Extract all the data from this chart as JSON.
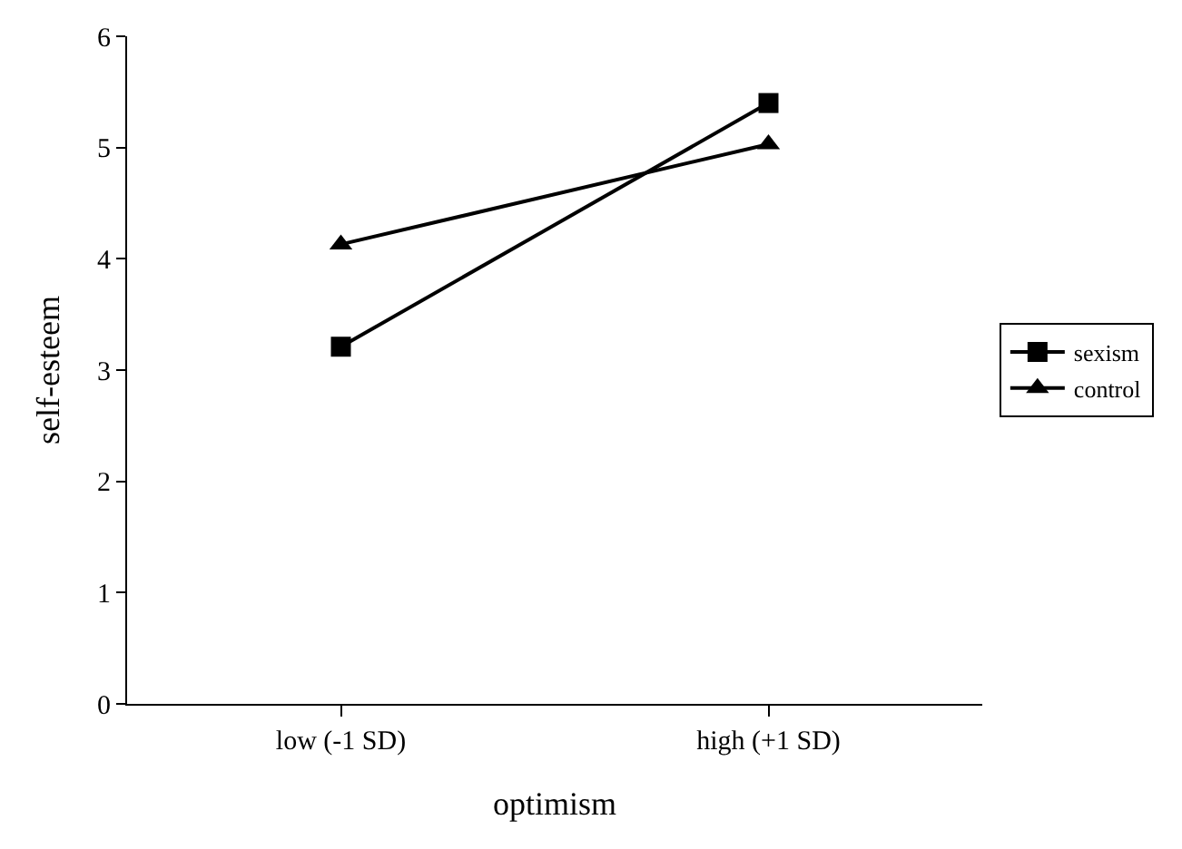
{
  "chart_data": {
    "type": "line",
    "xlabel": "optimism",
    "ylabel": "self-esteem",
    "categories": [
      "low (-1 SD)",
      "high (+1 SD)"
    ],
    "series": [
      {
        "name": "sexism",
        "color": "#000000",
        "values": [
          3.21,
          5.4
        ],
        "marker": "square"
      },
      {
        "name": "control",
        "color": "#000000",
        "values": [
          4.13,
          5.03
        ],
        "marker": "triangle"
      }
    ],
    "ylim": [
      0,
      6
    ],
    "yticks": [
      0,
      1,
      2,
      3,
      4,
      5,
      6
    ],
    "legend": "right",
    "line_style": "solid"
  }
}
